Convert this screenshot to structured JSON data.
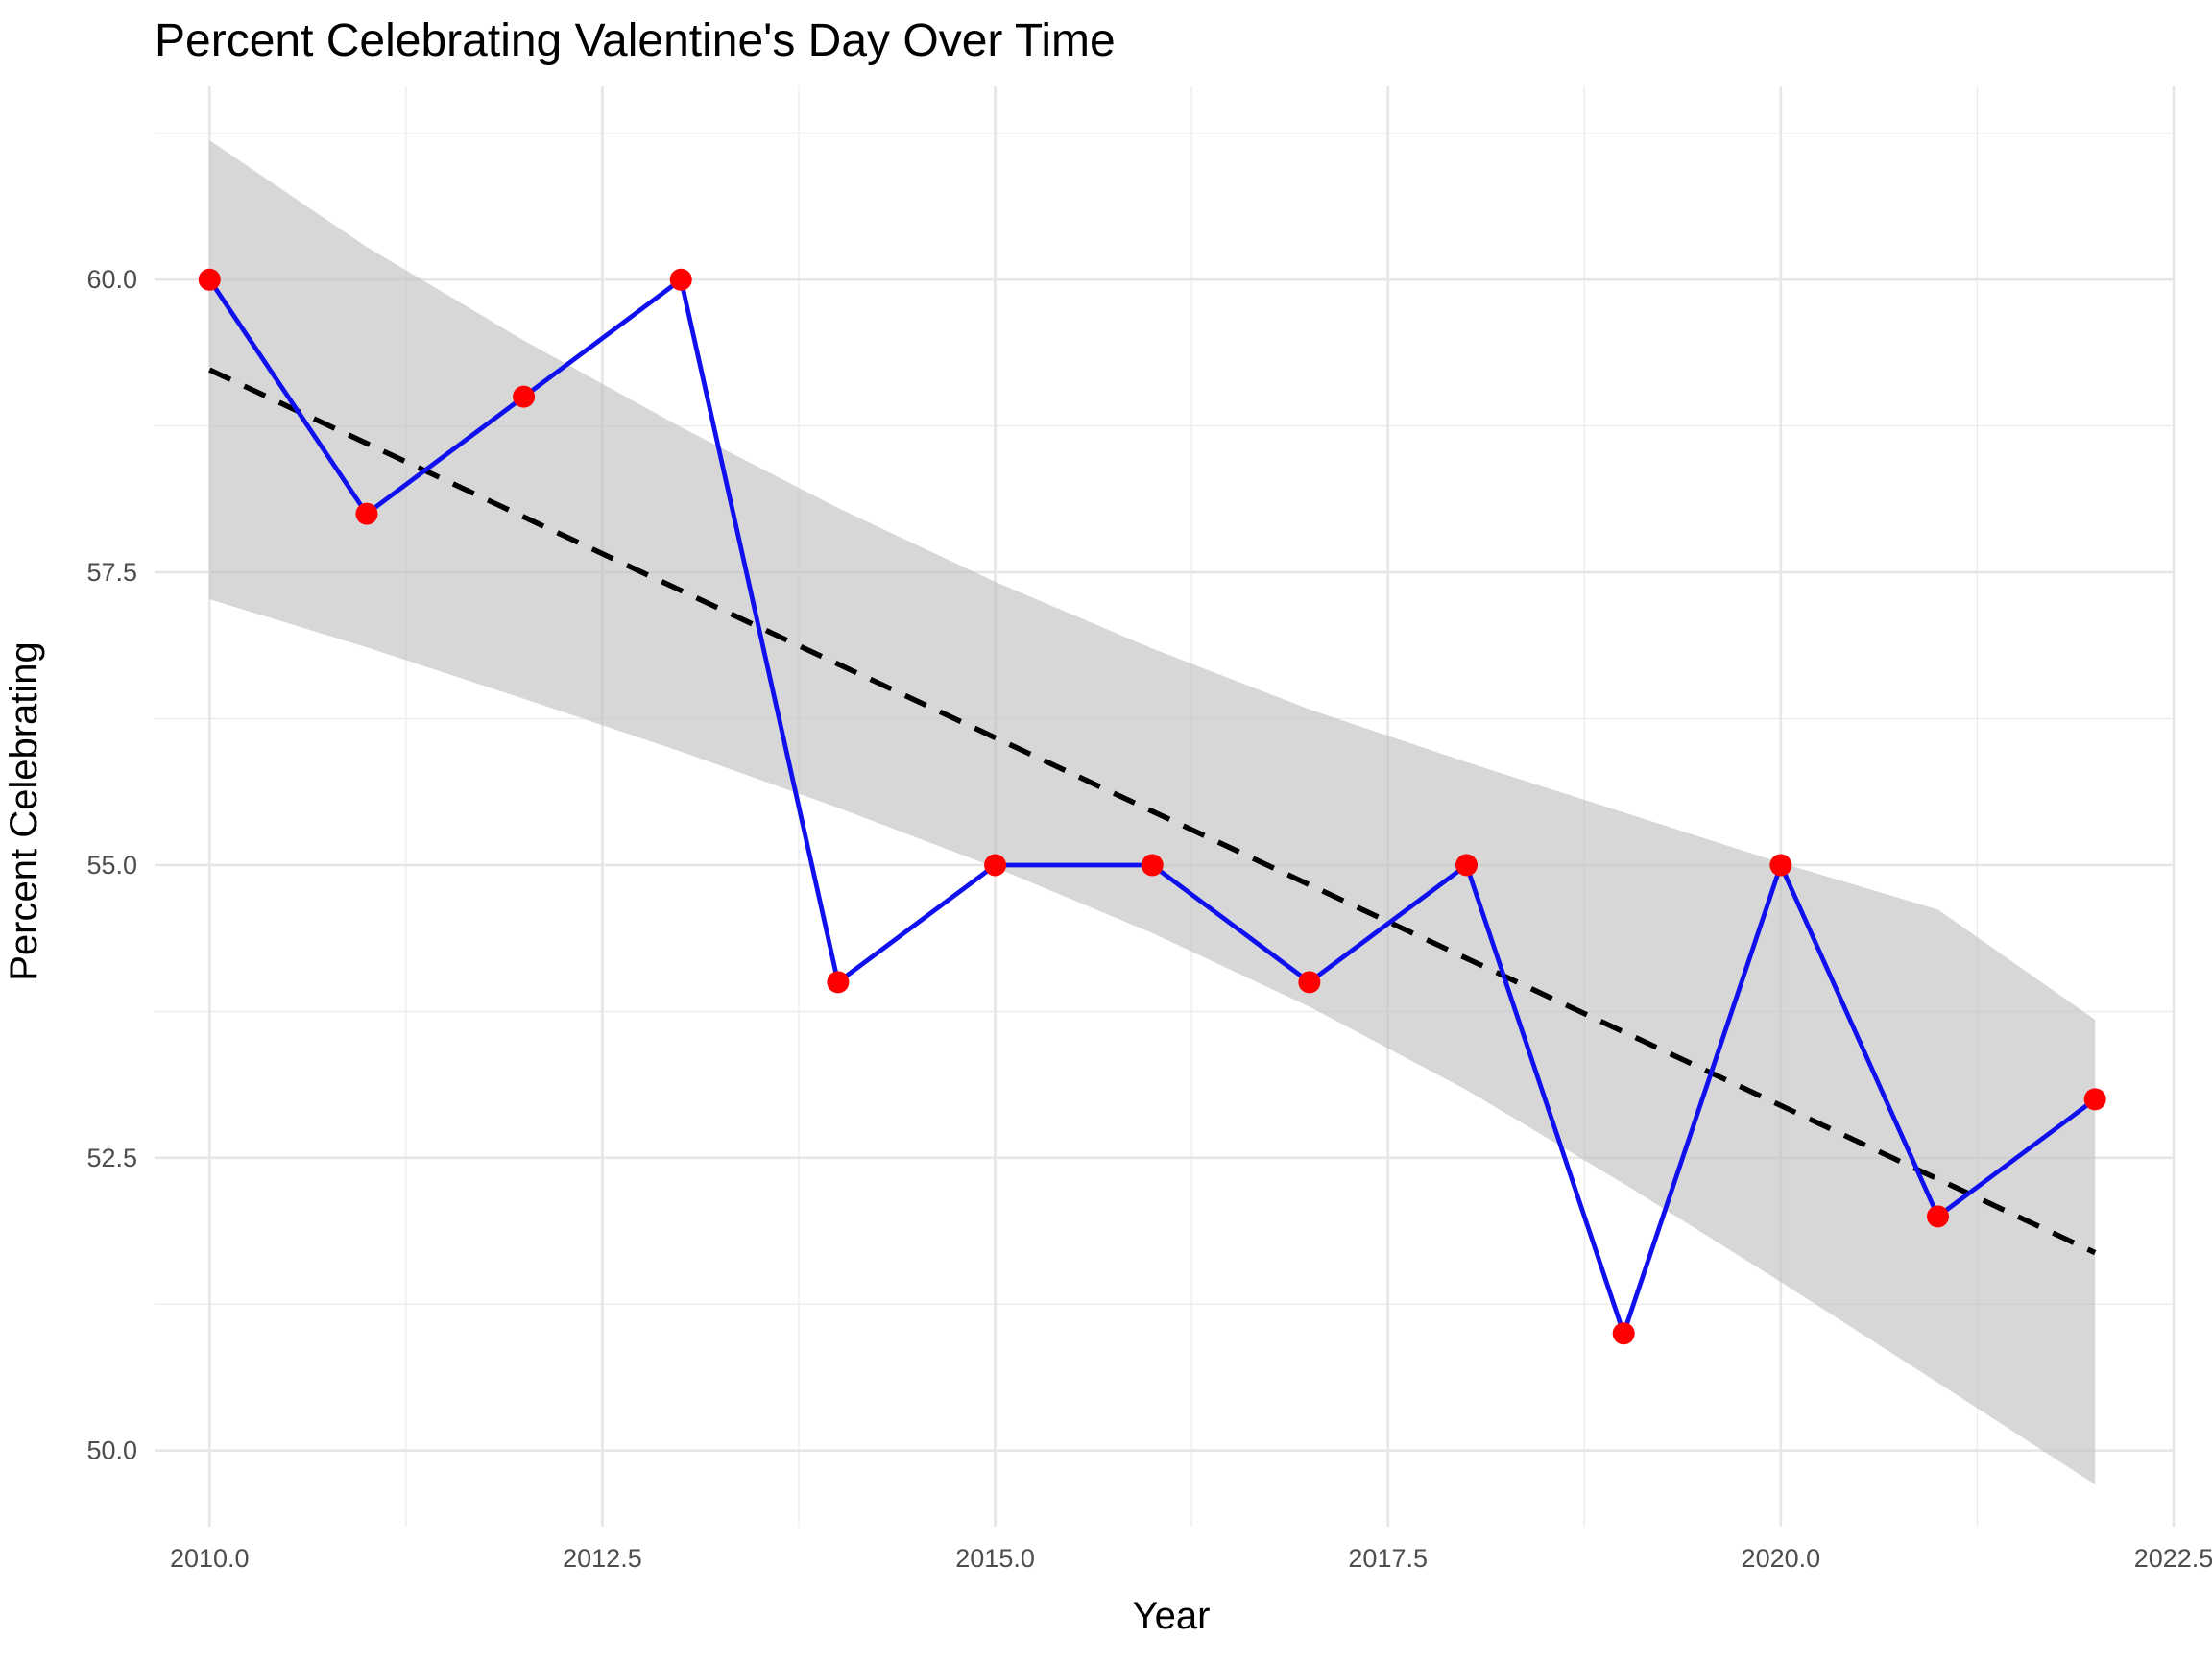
{
  "chart_data": {
    "type": "line",
    "title": "Percent Celebrating Valentine's Day Over Time",
    "xlabel": "Year",
    "ylabel": "Percent Celebrating",
    "xlim": [
      2009.65,
      2022.5
    ],
    "ylim": [
      49.35,
      61.65
    ],
    "x_ticks": [
      2010.0,
      2012.5,
      2015.0,
      2017.5,
      2020.0,
      2022.5
    ],
    "x_tick_labels": [
      "2010.0",
      "2012.5",
      "2015.0",
      "2017.5",
      "2020.0",
      "2022.5"
    ],
    "y_ticks": [
      50.0,
      52.5,
      55.0,
      57.5,
      60.0
    ],
    "y_tick_labels": [
      "50.0",
      "52.5",
      "55.0",
      "57.5",
      "60.0"
    ],
    "grid": true,
    "series": [
      {
        "type": "line+points",
        "x": [
          2010,
          2011,
          2012,
          2013,
          2014,
          2015,
          2016,
          2017,
          2018,
          2019,
          2020,
          2021,
          2022
        ],
        "y": [
          60,
          58,
          59,
          60,
          54,
          55,
          55,
          54,
          55,
          51,
          55,
          52,
          53
        ],
        "line_color": "#1010ee",
        "point_color": "#ff0000"
      }
    ],
    "trend": {
      "method": "linear",
      "style": "dashed",
      "color": "#000000",
      "x": [
        2010,
        2022
      ],
      "y": [
        59.23,
        51.69
      ],
      "confidence_band": {
        "color": "#bebebe",
        "x": [
          2010,
          2011,
          2012,
          2013,
          2014,
          2015,
          2016,
          2017,
          2018,
          2019,
          2020,
          2021,
          2022
        ],
        "lower": [
          57.27,
          56.86,
          56.42,
          55.97,
          55.49,
          54.98,
          54.42,
          53.79,
          53.08,
          52.28,
          51.44,
          50.58,
          49.71
        ],
        "upper": [
          61.19,
          60.28,
          59.48,
          58.74,
          58.05,
          57.42,
          56.85,
          56.33,
          55.88,
          55.45,
          55.02,
          54.62,
          53.68
        ]
      }
    }
  }
}
